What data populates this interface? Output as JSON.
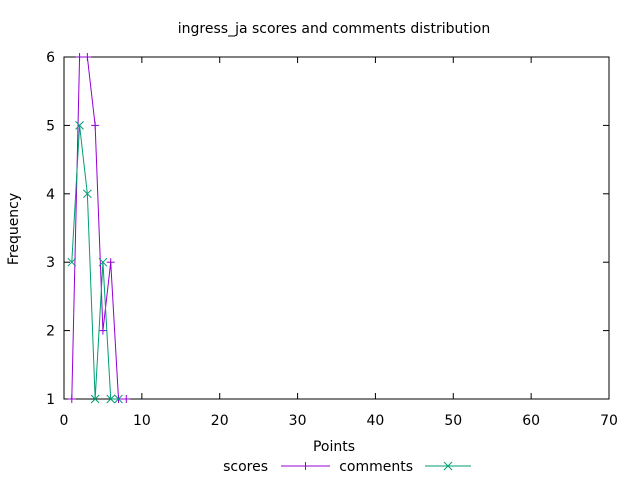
{
  "chart_data": {
    "type": "line",
    "title": "ingress_ja scores and comments distribution",
    "xlabel": "Points",
    "ylabel": "Frequency",
    "xlim": [
      0,
      70
    ],
    "ylim": [
      1,
      6
    ],
    "xticks": [
      0,
      10,
      20,
      30,
      40,
      50,
      60,
      70
    ],
    "yticks": [
      1,
      2,
      3,
      4,
      5,
      6
    ],
    "grid": false,
    "legend_position": "bottom",
    "series": [
      {
        "name": "scores",
        "color": "#9400d3",
        "marker": "plus",
        "x": [
          1,
          2,
          3,
          4,
          5,
          6,
          7,
          8
        ],
        "y": [
          1,
          6,
          6,
          5,
          2,
          3,
          1,
          1
        ]
      },
      {
        "name": "comments",
        "color": "#009e73",
        "marker": "cross",
        "x": [
          1,
          2,
          3,
          4,
          5,
          6,
          7
        ],
        "y": [
          3,
          5,
          4,
          1,
          3,
          1,
          1
        ]
      }
    ]
  }
}
